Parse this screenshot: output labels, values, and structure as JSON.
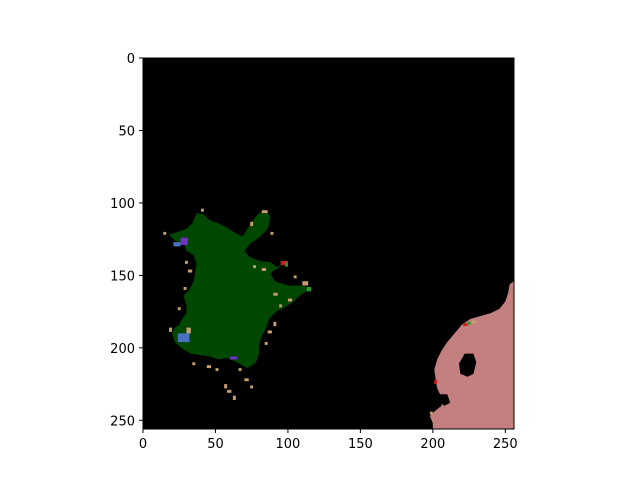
{
  "chart_data": {
    "type": "heatmap",
    "title": "",
    "xlabel": "",
    "ylabel": "",
    "xlim": [
      0,
      256
    ],
    "ylim": [
      256,
      0
    ],
    "y_inverted": true,
    "grid": false,
    "legend": "none",
    "x_ticks": [
      0,
      50,
      100,
      150,
      200,
      250
    ],
    "y_ticks": [
      0,
      50,
      100,
      150,
      200,
      250
    ],
    "x_tick_labels": [
      "0",
      "50",
      "100",
      "150",
      "200",
      "250"
    ],
    "y_tick_labels": [
      "0",
      "50",
      "100",
      "150",
      "200",
      "250"
    ],
    "colors": {
      "background": "#000000",
      "vegetation": "#004800",
      "terrain": "#c48080",
      "speckle_tan": "#c8a070",
      "speckle_blue": "#4a70c0",
      "speckle_purple": "#7030c8",
      "speckle_red": "#c82020",
      "speckle_green": "#20a020"
    },
    "regions": [
      {
        "class": "vegetation",
        "color": "#004800",
        "polygon": [
          [
            37,
            107
          ],
          [
            42,
            108
          ],
          [
            46,
            112
          ],
          [
            52,
            114
          ],
          [
            58,
            117
          ],
          [
            64,
            121
          ],
          [
            69,
            123
          ],
          [
            72,
            118
          ],
          [
            76,
            112
          ],
          [
            80,
            107
          ],
          [
            85,
            105
          ],
          [
            88,
            110
          ],
          [
            86,
            118
          ],
          [
            80,
            124
          ],
          [
            74,
            128
          ],
          [
            70,
            133
          ],
          [
            73,
            137
          ],
          [
            80,
            140
          ],
          [
            88,
            141
          ],
          [
            92,
            144
          ],
          [
            96,
            143
          ],
          [
            90,
            147
          ],
          [
            88,
            149
          ],
          [
            91,
            154
          ],
          [
            100,
            157
          ],
          [
            110,
            157
          ],
          [
            116,
            159
          ],
          [
            108,
            164
          ],
          [
            104,
            168
          ],
          [
            98,
            172
          ],
          [
            92,
            175
          ],
          [
            87,
            180
          ],
          [
            85,
            186
          ],
          [
            82,
            192
          ],
          [
            80,
            198
          ],
          [
            80,
            204
          ],
          [
            78,
            210
          ],
          [
            72,
            214
          ],
          [
            65,
            210
          ],
          [
            58,
            207
          ],
          [
            52,
            208
          ],
          [
            46,
            206
          ],
          [
            40,
            205
          ],
          [
            33,
            204
          ],
          [
            26,
            200
          ],
          [
            22,
            196
          ],
          [
            20,
            190
          ],
          [
            22,
            186
          ],
          [
            25,
            184
          ],
          [
            27,
            180
          ],
          [
            30,
            176
          ],
          [
            30,
            170
          ],
          [
            28,
            164
          ],
          [
            32,
            160
          ],
          [
            35,
            154
          ],
          [
            36,
            148
          ],
          [
            37,
            142
          ],
          [
            35,
            136
          ],
          [
            30,
            133
          ],
          [
            28,
            128
          ],
          [
            22,
            126
          ],
          [
            18,
            122
          ],
          [
            24,
            120
          ],
          [
            30,
            118
          ],
          [
            34,
            114
          ]
        ]
      },
      {
        "class": "terrain",
        "color": "#c48080",
        "polygon": [
          [
            256,
            154
          ],
          [
            253,
            156
          ],
          [
            252,
            162
          ],
          [
            250,
            168
          ],
          [
            246,
            173
          ],
          [
            240,
            176
          ],
          [
            233,
            178
          ],
          [
            226,
            180
          ],
          [
            220,
            184
          ],
          [
            215,
            190
          ],
          [
            210,
            196
          ],
          [
            206,
            202
          ],
          [
            203,
            208
          ],
          [
            201,
            215
          ],
          [
            202,
            222
          ],
          [
            203,
            228
          ],
          [
            206,
            234
          ],
          [
            206,
            240
          ],
          [
            201,
            244
          ],
          [
            198,
            247
          ],
          [
            200,
            252
          ],
          [
            200,
            256
          ],
          [
            256,
            256
          ]
        ]
      },
      {
        "class": "background",
        "color": "#000000",
        "polygon": [
          [
            222,
            204
          ],
          [
            228,
            204
          ],
          [
            230,
            210
          ],
          [
            228,
            218
          ],
          [
            224,
            220
          ],
          [
            219,
            218
          ],
          [
            218,
            211
          ]
        ]
      },
      {
        "class": "background",
        "color": "#000000",
        "polygon": [
          [
            205,
            232
          ],
          [
            210,
            232
          ],
          [
            212,
            238
          ],
          [
            208,
            240
          ],
          [
            205,
            238
          ]
        ]
      }
    ],
    "speckles": [
      {
        "x": 26,
        "y": 124,
        "w": 5,
        "h": 5,
        "color": "#7030c8"
      },
      {
        "x": 21,
        "y": 127,
        "w": 5,
        "h": 3,
        "color": "#4a70c0"
      },
      {
        "x": 95,
        "y": 140,
        "w": 5,
        "h": 3,
        "color": "#c82020"
      },
      {
        "x": 98,
        "y": 141,
        "w": 2,
        "h": 3,
        "color": "#20a020"
      },
      {
        "x": 110,
        "y": 154,
        "w": 4,
        "h": 3,
        "color": "#c8a070"
      },
      {
        "x": 113,
        "y": 158,
        "w": 3,
        "h": 3,
        "color": "#20a020"
      },
      {
        "x": 24,
        "y": 190,
        "w": 8,
        "h": 6,
        "color": "#4a70c0"
      },
      {
        "x": 30,
        "y": 186,
        "w": 3,
        "h": 4,
        "color": "#c8a070"
      },
      {
        "x": 60,
        "y": 206,
        "w": 5,
        "h": 2,
        "color": "#7030c8"
      },
      {
        "x": 82,
        "y": 105,
        "w": 4,
        "h": 2,
        "color": "#c8a070"
      },
      {
        "x": 56,
        "y": 225,
        "w": 2,
        "h": 3,
        "color": "#c8a070"
      },
      {
        "x": 58,
        "y": 229,
        "w": 3,
        "h": 2,
        "color": "#c8a070"
      },
      {
        "x": 62,
        "y": 233,
        "w": 2,
        "h": 3,
        "color": "#c8a070"
      },
      {
        "x": 70,
        "y": 221,
        "w": 3,
        "h": 2,
        "color": "#c8a070"
      },
      {
        "x": 74,
        "y": 226,
        "w": 2,
        "h": 2,
        "color": "#c8a070"
      },
      {
        "x": 14,
        "y": 120,
        "w": 2,
        "h": 2,
        "color": "#c8a070"
      },
      {
        "x": 29,
        "y": 140,
        "w": 2,
        "h": 2,
        "color": "#c8a070"
      },
      {
        "x": 31,
        "y": 146,
        "w": 3,
        "h": 2,
        "color": "#c8a070"
      },
      {
        "x": 28,
        "y": 158,
        "w": 2,
        "h": 2,
        "color": "#c8a070"
      },
      {
        "x": 24,
        "y": 172,
        "w": 2,
        "h": 2,
        "color": "#c8a070"
      },
      {
        "x": 18,
        "y": 186,
        "w": 2,
        "h": 3,
        "color": "#c8a070"
      },
      {
        "x": 34,
        "y": 210,
        "w": 2,
        "h": 2,
        "color": "#c8a070"
      },
      {
        "x": 44,
        "y": 212,
        "w": 3,
        "h": 2,
        "color": "#c8a070"
      },
      {
        "x": 90,
        "y": 162,
        "w": 3,
        "h": 2,
        "color": "#c8a070"
      },
      {
        "x": 94,
        "y": 170,
        "w": 2,
        "h": 2,
        "color": "#c8a070"
      },
      {
        "x": 100,
        "y": 166,
        "w": 3,
        "h": 2,
        "color": "#c8a070"
      },
      {
        "x": 104,
        "y": 150,
        "w": 2,
        "h": 2,
        "color": "#c8a070"
      },
      {
        "x": 86,
        "y": 188,
        "w": 3,
        "h": 2,
        "color": "#c8a070"
      },
      {
        "x": 84,
        "y": 196,
        "w": 2,
        "h": 2,
        "color": "#c8a070"
      },
      {
        "x": 90,
        "y": 182,
        "w": 2,
        "h": 3,
        "color": "#c8a070"
      },
      {
        "x": 82,
        "y": 145,
        "w": 3,
        "h": 2,
        "color": "#c8a070"
      },
      {
        "x": 76,
        "y": 143,
        "w": 2,
        "h": 2,
        "color": "#c8a070"
      },
      {
        "x": 88,
        "y": 120,
        "w": 2,
        "h": 2,
        "color": "#c8a070"
      },
      {
        "x": 74,
        "y": 113,
        "w": 2,
        "h": 3,
        "color": "#c8a070"
      },
      {
        "x": 40,
        "y": 104,
        "w": 2,
        "h": 2,
        "color": "#c8a070"
      },
      {
        "x": 66,
        "y": 214,
        "w": 2,
        "h": 2,
        "color": "#c8a070"
      },
      {
        "x": 50,
        "y": 214,
        "w": 2,
        "h": 2,
        "color": "#c8a070"
      },
      {
        "x": 221,
        "y": 183,
        "w": 3,
        "h": 2,
        "color": "#c82020"
      },
      {
        "x": 224,
        "y": 182,
        "w": 2,
        "h": 2,
        "color": "#20a020"
      },
      {
        "x": 227,
        "y": 181,
        "w": 3,
        "h": 2,
        "color": "#c8a070"
      },
      {
        "x": 201,
        "y": 222,
        "w": 2,
        "h": 3,
        "color": "#c82020"
      },
      {
        "x": 198,
        "y": 244,
        "w": 2,
        "h": 2,
        "color": "#c8a070"
      }
    ]
  }
}
